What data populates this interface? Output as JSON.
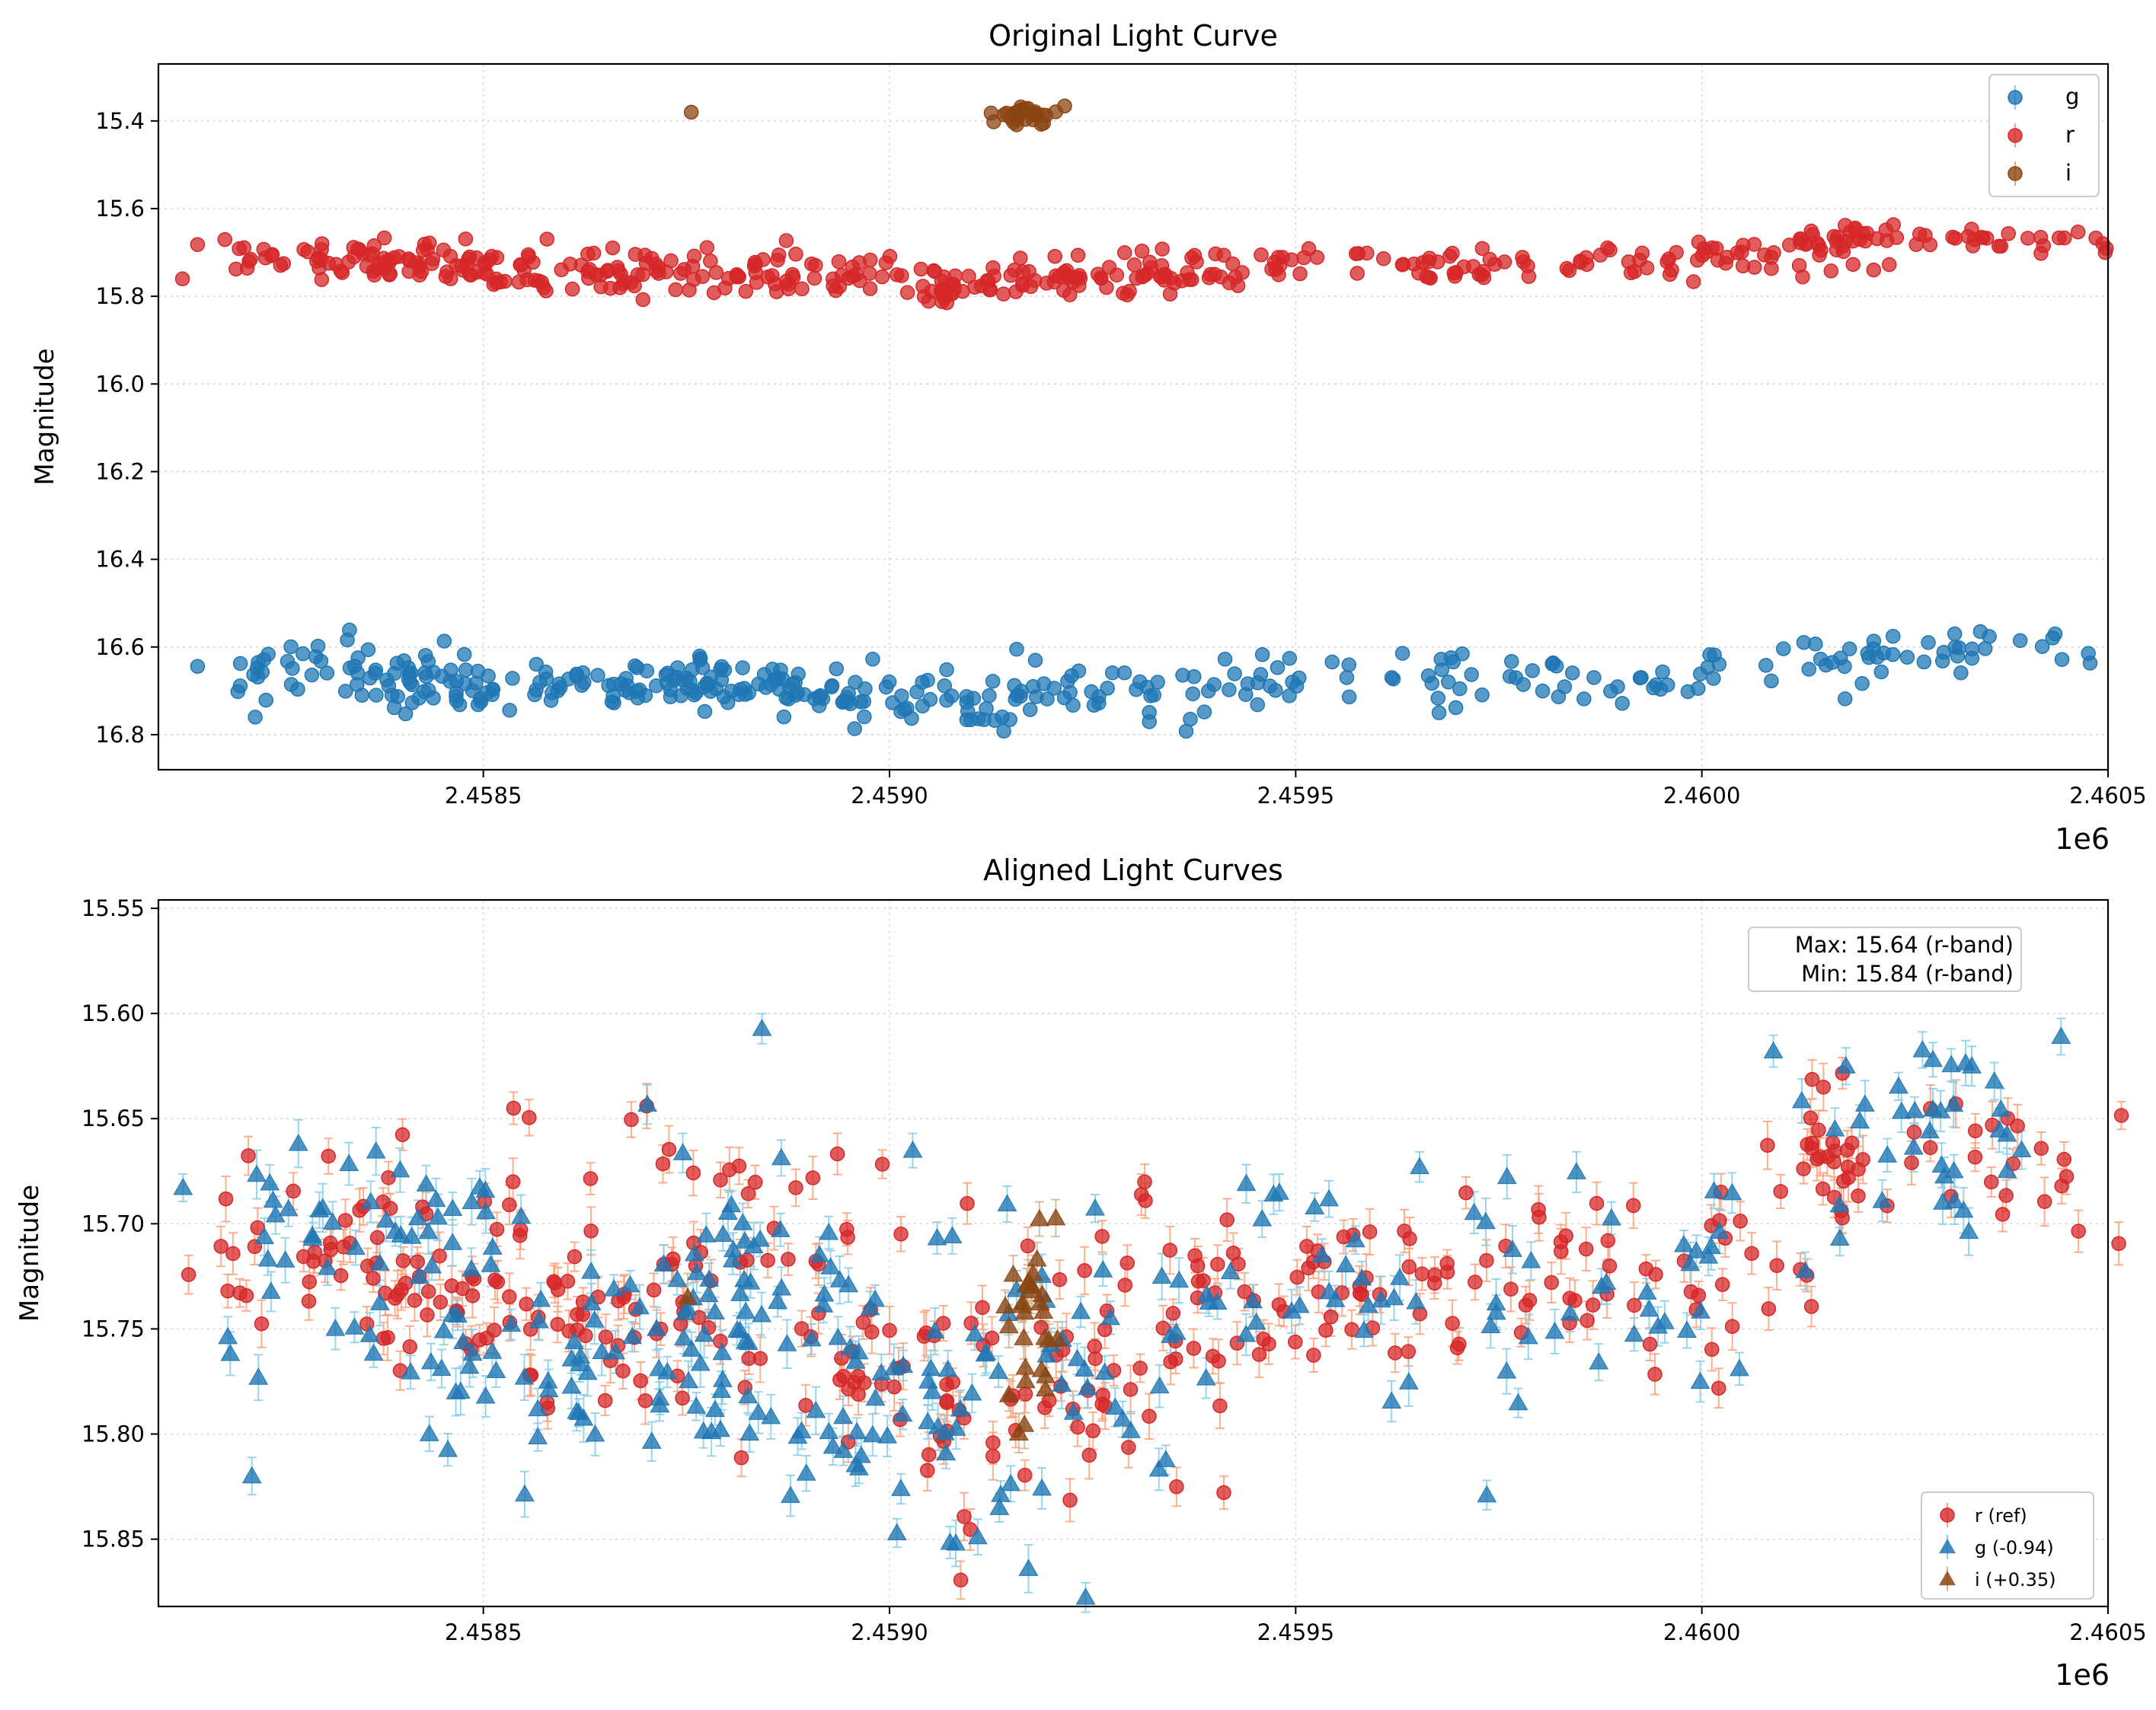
{
  "chart_data": [
    {
      "type": "scatter",
      "title": "Original Light Curve",
      "xlabel": "",
      "ylabel": "Magnitude",
      "x_offset_label": "1e6",
      "xlim": [
        2.4581,
        2.4605
      ],
      "ylim": [
        16.88,
        15.27
      ],
      "y_inverted": true,
      "grid": true,
      "legend_position": "top-right",
      "xticks": [
        2.4585,
        2.459,
        2.4595,
        2.46,
        2.4605
      ],
      "xtick_labels": [
        "2.4585",
        "2.4590",
        "2.4595",
        "2.4600",
        "2.4605"
      ],
      "yticks": [
        15.4,
        15.6,
        15.8,
        16.0,
        16.2,
        16.4,
        16.6,
        16.8
      ],
      "ytick_labels": [
        "15.4",
        "15.6",
        "15.8",
        "16.0",
        "16.2",
        "16.4",
        "16.6",
        "16.8"
      ],
      "series": [
        {
          "name": "g",
          "color": "#1f77b4",
          "errcolor": "#87ceeb",
          "marker": "circle",
          "clusters": [
            {
              "x": 2.45821,
              "y": 16.66,
              "n": 6,
              "xs": 3e-05,
              "ys": 0.03
            },
            {
              "x": 2.45823,
              "y": 16.76,
              "n": 1,
              "xs": 1e-05,
              "ys": 0.0
            },
            {
              "x": 2.45836,
              "y": 16.64,
              "n": 40,
              "xs": 8e-05,
              "ys": 0.03
            },
            {
              "x": 2.45848,
              "y": 16.69,
              "n": 50,
              "xs": 0.00012,
              "ys": 0.025
            },
            {
              "x": 2.45865,
              "y": 16.69,
              "n": 30,
              "xs": 0.0001,
              "ys": 0.025
            },
            {
              "x": 2.45876,
              "y": 16.68,
              "n": 28,
              "xs": 8e-05,
              "ys": 0.03
            },
            {
              "x": 2.45888,
              "y": 16.69,
              "n": 45,
              "xs": 0.00011,
              "ys": 0.03
            },
            {
              "x": 2.45896,
              "y": 16.73,
              "n": 12,
              "xs": 5e-05,
              "ys": 0.025
            },
            {
              "x": 2.45912,
              "y": 16.74,
              "n": 40,
              "xs": 0.00012,
              "ys": 0.03
            },
            {
              "x": 2.45928,
              "y": 16.69,
              "n": 30,
              "xs": 0.00012,
              "ys": 0.025
            },
            {
              "x": 2.45949,
              "y": 16.67,
              "n": 22,
              "xs": 8e-05,
              "ys": 0.02
            },
            {
              "x": 2.45966,
              "y": 16.68,
              "n": 10,
              "xs": 6e-05,
              "ys": 0.03
            },
            {
              "x": 2.45987,
              "y": 16.67,
              "n": 35,
              "xs": 0.00012,
              "ys": 0.03
            },
            {
              "x": 2.46003,
              "y": 16.64,
              "n": 3,
              "xs": 4e-05,
              "ys": 0.02
            },
            {
              "x": 2.46022,
              "y": 16.62,
              "n": 30,
              "xs": 0.0001,
              "ys": 0.03
            },
            {
              "x": 2.46035,
              "y": 16.59,
              "n": 14,
              "xs": 8e-05,
              "ys": 0.03
            }
          ]
        },
        {
          "name": "r",
          "color": "#d62728",
          "errcolor": "#ffa07a",
          "marker": "circle",
          "clusters": [
            {
              "x": 2.45821,
              "y": 15.7,
              "n": 6,
              "xs": 3e-05,
              "ys": 0.02
            },
            {
              "x": 2.45836,
              "y": 15.7,
              "n": 40,
              "xs": 8e-05,
              "ys": 0.02
            },
            {
              "x": 2.4585,
              "y": 15.74,
              "n": 60,
              "xs": 0.00013,
              "ys": 0.02
            },
            {
              "x": 2.45863,
              "y": 15.75,
              "n": 30,
              "xs": 9e-05,
              "ys": 0.02
            },
            {
              "x": 2.4588,
              "y": 15.74,
              "n": 60,
              "xs": 0.00012,
              "ys": 0.03
            },
            {
              "x": 2.45896,
              "y": 15.76,
              "n": 15,
              "xs": 5e-05,
              "ys": 0.02
            },
            {
              "x": 2.45907,
              "y": 15.79,
              "n": 15,
              "xs": 2e-05,
              "ys": 0.025
            },
            {
              "x": 2.45918,
              "y": 15.77,
              "n": 40,
              "xs": 0.0001,
              "ys": 0.02
            },
            {
              "x": 2.4593,
              "y": 15.75,
              "n": 35,
              "xs": 8e-05,
              "ys": 0.025
            },
            {
              "x": 2.45948,
              "y": 15.73,
              "n": 35,
              "xs": 0.0001,
              "ys": 0.02
            },
            {
              "x": 2.45967,
              "y": 15.73,
              "n": 20,
              "xs": 6e-05,
              "ys": 0.025
            },
            {
              "x": 2.4599,
              "y": 15.72,
              "n": 50,
              "xs": 0.00014,
              "ys": 0.02
            },
            {
              "x": 2.46003,
              "y": 15.7,
              "n": 5,
              "xs": 5e-05,
              "ys": 0.01
            },
            {
              "x": 2.46016,
              "y": 15.67,
              "n": 20,
              "xs": 2e-05,
              "ys": 0.02
            },
            {
              "x": 2.4603,
              "y": 15.67,
              "n": 40,
              "xs": 0.00014,
              "ys": 0.015
            }
          ]
        },
        {
          "name": "i",
          "color": "#8b4513",
          "errcolor": "#d2b48c",
          "marker": "circle",
          "clusters": [
            {
              "x": 2.45875,
              "y": 15.38,
              "n": 1,
              "xs": 1e-05,
              "ys": 0.0
            },
            {
              "x": 2.45917,
              "y": 15.38,
              "n": 30,
              "xs": 2e-05,
              "ys": 0.015
            }
          ]
        }
      ]
    },
    {
      "type": "scatter",
      "title": "Aligned Light Curves",
      "xlabel": "",
      "ylabel": "Magnitude",
      "x_offset_label": "1e6",
      "xlim": [
        2.4581,
        2.4605
      ],
      "ylim": [
        15.882,
        15.546
      ],
      "y_inverted": true,
      "grid": true,
      "legend_position": "bottom-right",
      "xticks": [
        2.4585,
        2.459,
        2.4595,
        2.46,
        2.4605
      ],
      "xtick_labels": [
        "2.4585",
        "2.4590",
        "2.4595",
        "2.4600",
        "2.4605"
      ],
      "yticks": [
        15.55,
        15.6,
        15.65,
        15.7,
        15.75,
        15.8,
        15.85
      ],
      "ytick_labels": [
        "15.55",
        "15.60",
        "15.65",
        "15.70",
        "15.75",
        "15.80",
        "15.85"
      ],
      "annotation": [
        "Max: 15.64 (r-band)",
        "Min: 15.84 (r-band)"
      ],
      "series": [
        {
          "name": "r (ref)",
          "color": "#d62728",
          "errcolor": "#ffa07a",
          "marker": "circle",
          "clusters": [
            {
              "x": 2.45821,
              "y": 15.7,
              "n": 6,
              "xs": 3e-05,
              "ys": 0.02
            },
            {
              "x": 2.45836,
              "y": 15.71,
              "n": 35,
              "xs": 8e-05,
              "ys": 0.02
            },
            {
              "x": 2.4585,
              "y": 15.74,
              "n": 50,
              "xs": 0.00013,
              "ys": 0.02
            },
            {
              "x": 2.45863,
              "y": 15.75,
              "n": 25,
              "xs": 9e-05,
              "ys": 0.02
            },
            {
              "x": 2.4588,
              "y": 15.72,
              "n": 50,
              "xs": 0.00012,
              "ys": 0.035
            },
            {
              "x": 2.45896,
              "y": 15.77,
              "n": 15,
              "xs": 5e-05,
              "ys": 0.02
            },
            {
              "x": 2.45907,
              "y": 15.8,
              "n": 15,
              "xs": 2e-05,
              "ys": 0.03
            },
            {
              "x": 2.45918,
              "y": 15.77,
              "n": 35,
              "xs": 0.0001,
              "ys": 0.025
            },
            {
              "x": 2.45932,
              "y": 15.75,
              "n": 30,
              "xs": 8e-05,
              "ys": 0.03
            },
            {
              "x": 2.45948,
              "y": 15.73,
              "n": 30,
              "xs": 0.0001,
              "ys": 0.02
            },
            {
              "x": 2.45967,
              "y": 15.72,
              "n": 20,
              "xs": 6e-05,
              "ys": 0.025
            },
            {
              "x": 2.4599,
              "y": 15.72,
              "n": 45,
              "xs": 0.00014,
              "ys": 0.02
            },
            {
              "x": 2.46003,
              "y": 15.7,
              "n": 4,
              "xs": 5e-05,
              "ys": 0.01
            },
            {
              "x": 2.46016,
              "y": 15.68,
              "n": 20,
              "xs": 2e-05,
              "ys": 0.02
            },
            {
              "x": 2.4603,
              "y": 15.67,
              "n": 35,
              "xs": 0.00014,
              "ys": 0.02
            }
          ]
        },
        {
          "name": "g (-0.94)",
          "color": "#1f77b4",
          "errcolor": "#87ceeb",
          "marker": "triangle",
          "clusters": [
            {
              "x": 2.45821,
              "y": 15.73,
              "n": 6,
              "xs": 3e-05,
              "ys": 0.04
            },
            {
              "x": 2.45823,
              "y": 15.82,
              "n": 1,
              "xs": 1e-05,
              "ys": 0.0
            },
            {
              "x": 2.45836,
              "y": 15.7,
              "n": 35,
              "xs": 8e-05,
              "ys": 0.03
            },
            {
              "x": 2.45848,
              "y": 15.75,
              "n": 40,
              "xs": 0.00012,
              "ys": 0.03
            },
            {
              "x": 2.45865,
              "y": 15.75,
              "n": 25,
              "xs": 0.0001,
              "ys": 0.03
            },
            {
              "x": 2.45878,
              "y": 15.75,
              "n": 30,
              "xs": 8e-05,
              "ys": 0.035
            },
            {
              "x": 2.45888,
              "y": 15.74,
              "n": 40,
              "xs": 0.00011,
              "ys": 0.04
            },
            {
              "x": 2.45896,
              "y": 15.8,
              "n": 12,
              "xs": 5e-05,
              "ys": 0.025
            },
            {
              "x": 2.45912,
              "y": 15.79,
              "n": 40,
              "xs": 0.00012,
              "ys": 0.035
            },
            {
              "x": 2.45928,
              "y": 15.75,
              "n": 25,
              "xs": 0.00012,
              "ys": 0.035
            },
            {
              "x": 2.45949,
              "y": 15.73,
              "n": 20,
              "xs": 8e-05,
              "ys": 0.025
            },
            {
              "x": 2.45966,
              "y": 15.73,
              "n": 10,
              "xs": 6e-05,
              "ys": 0.03
            },
            {
              "x": 2.45987,
              "y": 15.73,
              "n": 30,
              "xs": 0.00012,
              "ys": 0.035
            },
            {
              "x": 2.46003,
              "y": 15.69,
              "n": 3,
              "xs": 4e-05,
              "ys": 0.02
            },
            {
              "x": 2.46022,
              "y": 15.67,
              "n": 25,
              "xs": 0.0001,
              "ys": 0.03
            },
            {
              "x": 2.46035,
              "y": 15.65,
              "n": 12,
              "xs": 8e-05,
              "ys": 0.03
            }
          ]
        },
        {
          "name": "i (+0.35)",
          "color": "#8b4513",
          "errcolor": "#d2b48c",
          "marker": "triangle",
          "clusters": [
            {
              "x": 2.45875,
              "y": 15.735,
              "n": 1,
              "xs": 1e-05,
              "ys": 0.0
            },
            {
              "x": 2.45917,
              "y": 15.74,
              "n": 30,
              "xs": 2e-05,
              "ys": 0.025
            }
          ]
        }
      ]
    }
  ]
}
